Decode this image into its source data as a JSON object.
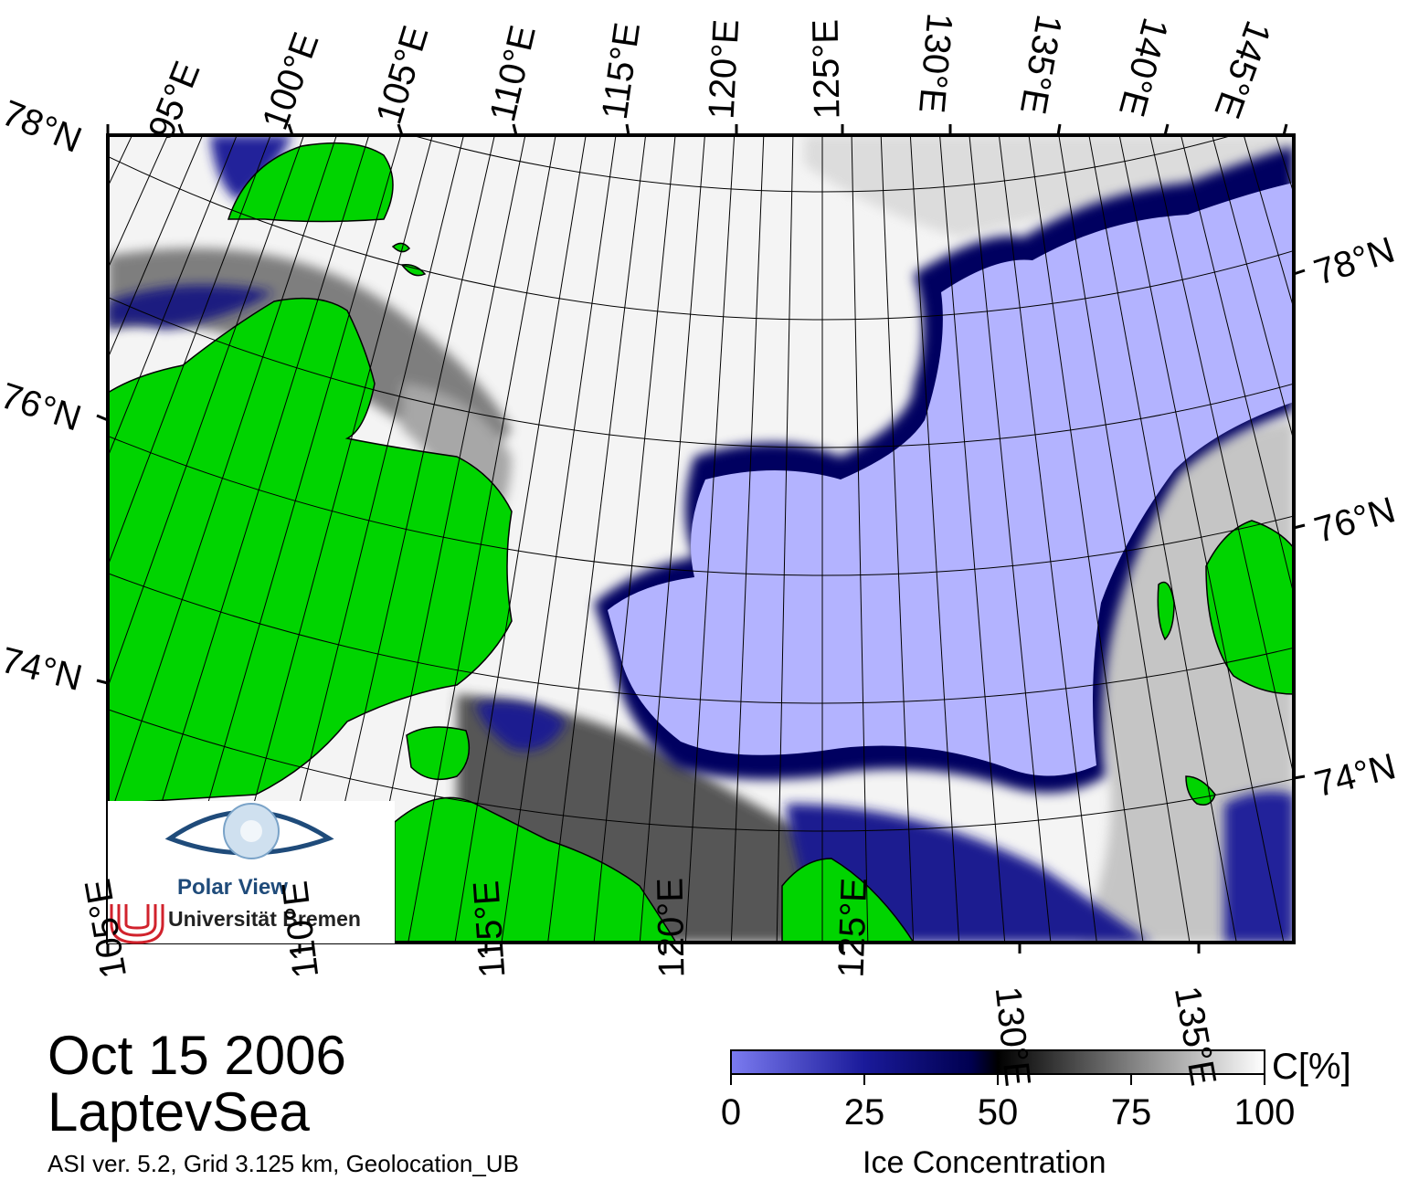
{
  "date": "Oct 15 2006",
  "region": "LaptevSea",
  "info": "ASI ver. 5.2,  Grid 3.125 km, Geolocation_UB",
  "colorbar": {
    "title": "Ice Concentration",
    "unit": "C[%]",
    "ticks": [
      "0",
      "25",
      "50",
      "75",
      "100"
    ],
    "stops": [
      {
        "value": 0,
        "color": "#7b7bf0"
      },
      {
        "value": 25,
        "color": "#1a1a9a"
      },
      {
        "value": 45,
        "color": "#000050"
      },
      {
        "value": 50,
        "color": "#000000"
      },
      {
        "value": 75,
        "color": "#808080"
      },
      {
        "value": 100,
        "color": "#ffffff"
      }
    ]
  },
  "top_labels": [
    "95°E",
    "100°E",
    "105°E",
    "110°E",
    "115°E",
    "120°E",
    "125°E",
    "130°E",
    "135°E",
    "140°E",
    "145°E"
  ],
  "bottom_labels": [
    "105°E",
    "110°E",
    "115°E",
    "120°E",
    "125°E",
    "130°E",
    "135°E"
  ],
  "left_labels": [
    "78°N",
    "76°N",
    "74°N"
  ],
  "right_labels": [
    "78°N",
    "76°N",
    "74°N"
  ],
  "logo": {
    "title": "Polar View",
    "university": "Universität Bremen"
  },
  "colors": {
    "land": "#00d400",
    "open_water": "#b3b3ff",
    "coast_ice": "#8c8c8c",
    "frame": "#000000"
  }
}
